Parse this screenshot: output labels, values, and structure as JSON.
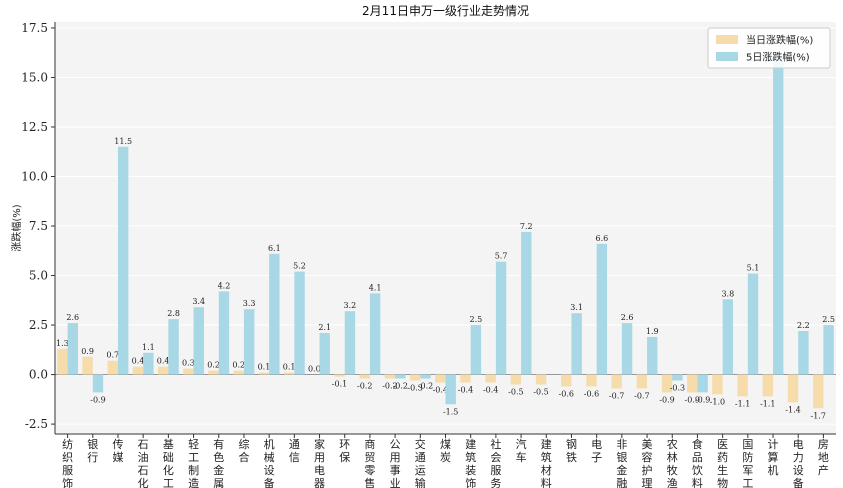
{
  "chart_data": {
    "type": "bar",
    "title": "2月11日申万一级行业走势情况",
    "xlabel": "",
    "ylabel": "涨跌幅(%)",
    "ylim": [
      -3.0,
      17.8
    ],
    "yticks": [
      -2.5,
      0.0,
      2.5,
      5.0,
      7.5,
      10.0,
      12.5,
      15.0,
      17.5
    ],
    "ytick_labels": [
      "-2.5",
      "0.0",
      "2.5",
      "5.0",
      "7.5",
      "10.0",
      "12.5",
      "15.0",
      "17.5"
    ],
    "grid": "horizontal",
    "legend_position": "top-right",
    "categories": [
      "纺织服饰",
      "银行",
      "传媒",
      "石油石化",
      "基础化工",
      "轻工制造",
      "有色金属",
      "综合",
      "机械设备",
      "通信",
      "家用电器",
      "环保",
      "商贸零售",
      "公用事业",
      "交通运输",
      "煤炭",
      "建筑装饰",
      "社会服务",
      "汽车",
      "建筑材料",
      "钢铁",
      "电子",
      "非银金融",
      "美容护理",
      "农林牧渔",
      "食品饮料",
      "医药生物",
      "国防军工",
      "计算机",
      "电力设备",
      "房地产"
    ],
    "series": [
      {
        "name": "当日涨跌幅(%)",
        "color": "#f6dcaa",
        "values": [
          1.3,
          0.9,
          0.7,
          0.4,
          0.4,
          0.3,
          0.2,
          0.2,
          0.1,
          0.1,
          0.0,
          -0.1,
          -0.2,
          -0.2,
          -0.3,
          -0.4,
          -0.4,
          -0.4,
          -0.5,
          -0.5,
          -0.6,
          -0.6,
          -0.7,
          -0.7,
          -0.9,
          -0.9,
          -1.0,
          -1.1,
          -1.1,
          -1.4,
          -1.7
        ],
        "labels": [
          "1.3",
          "0.9",
          "0.7",
          "0.4",
          "0.4",
          "0.3",
          "0.2",
          "0.2",
          "0.1",
          "0.1",
          "0.0",
          "-0.1",
          "-0.2",
          "-0.2",
          "-0.3",
          "-0.4",
          "-0.4",
          "-0.4",
          "-0.5",
          "-0.5",
          "-0.6",
          "-0.6",
          "-0.7",
          "-0.7",
          "-0.9",
          "-0.9",
          "-1.0",
          "-1.1",
          "-1.1",
          "-1.4",
          "-1.7"
        ]
      },
      {
        "name": "5日涨跌幅(%)",
        "color": "#a8d8e6",
        "values": [
          2.6,
          -0.9,
          11.5,
          1.1,
          2.8,
          3.4,
          4.2,
          3.3,
          6.1,
          5.2,
          2.1,
          3.2,
          4.1,
          -0.2,
          -0.2,
          -1.5,
          2.5,
          5.7,
          7.2,
          0.0,
          3.1,
          6.6,
          2.6,
          1.9,
          -0.3,
          -0.9,
          3.8,
          5.1,
          16.0,
          2.2,
          2.5
        ],
        "labels": [
          "2.6",
          "-0.9",
          "11.5",
          "1.1",
          "2.8",
          "3.4",
          "4.2",
          "3.3",
          "6.1",
          "5.2",
          "2.1",
          "3.2",
          "4.1",
          "-0.2",
          "-0.2",
          "-1.5",
          "2.5",
          "5.7",
          "7.2",
          "",
          "3.1",
          "6.6",
          "2.6",
          "1.9",
          "-0.3",
          "-0.9",
          "3.8",
          "5.1",
          "",
          "2.2",
          "2.5"
        ]
      }
    ]
  }
}
